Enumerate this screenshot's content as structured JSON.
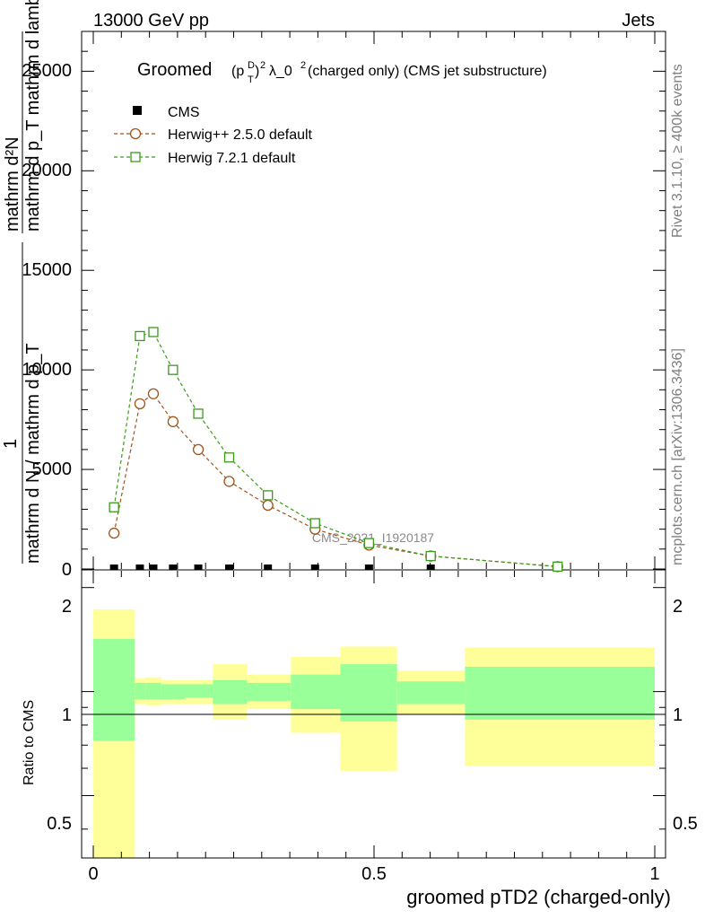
{
  "header": {
    "left": "13000 GeV pp",
    "right": "Jets"
  },
  "side_labels": {
    "rivet": "Rivet 3.1.10, ≥ 400k events",
    "mcplots": "mcplots.cern.ch [arXiv:1306.3436]"
  },
  "chart_data": {
    "type": "scatter",
    "title": "Groomed (p_T^D)^2 λ_0^2 (charged only) (CMS jet substructure)",
    "title_parts": {
      "main": "Groomed",
      "sup": "D",
      "sub": "T",
      "sup2": "2",
      "lambda": "λ_0",
      "rest": " (charged only) (CMS jet substructure)"
    },
    "analysis_label": "CMS_2021_I1920187",
    "xlabel": "groomed pTD2 (charged-only)",
    "ylabel": {
      "line1": "mathrm d²N",
      "line2": "mathrm d p_T mathrm d lambda",
      "line3": "1",
      "line4": "mathrm d N / mathrm d p_T"
    },
    "ratio_ylabel": "Ratio to CMS",
    "xlim": [
      0,
      1
    ],
    "ylim": [
      0,
      27000
    ],
    "ratio_ylim": [
      0.33,
      2.25
    ],
    "x_ticks": [
      "0",
      "0.5",
      "1"
    ],
    "y_ticks": [
      "0",
      "5000",
      "10000",
      "15000",
      "20000",
      "25000"
    ],
    "ratio_ticks": [
      "0.5",
      "1",
      "2"
    ],
    "legend": [
      {
        "name": "CMS",
        "marker": "square-filled",
        "color": "#000000"
      },
      {
        "name": "Herwig++ 2.5.0 default",
        "marker": "circle-open",
        "color": "#a0521d"
      },
      {
        "name": "Herwig 7.2.1 default",
        "marker": "square-open",
        "color": "#3a9a1a"
      }
    ],
    "series": [
      {
        "name": "CMS",
        "x": [
          0.037,
          0.083,
          0.107,
          0.142,
          0.187,
          0.242,
          0.311,
          0.395,
          0.491,
          0.601,
          0.827
        ],
        "y": [
          40,
          40,
          40,
          40,
          40,
          40,
          40,
          40,
          40,
          40,
          40
        ]
      },
      {
        "name": "Herwig++ 2.5.0 default",
        "x": [
          0.037,
          0.083,
          0.107,
          0.142,
          0.187,
          0.242,
          0.311,
          0.395,
          0.491,
          0.601,
          0.827
        ],
        "y": [
          1800,
          8300,
          8800,
          7400,
          6000,
          4400,
          3200,
          2000,
          1200,
          650,
          120
        ]
      },
      {
        "name": "Herwig 7.2.1 default",
        "x": [
          0.037,
          0.083,
          0.107,
          0.142,
          0.187,
          0.242,
          0.311,
          0.395,
          0.491,
          0.601,
          0.827
        ],
        "y": [
          3100,
          11700,
          11900,
          10000,
          7800,
          5600,
          3700,
          2300,
          1300,
          650,
          120
        ]
      }
    ],
    "ratio_bands": [
      {
        "x0": 0.0,
        "x1": 0.074,
        "yellow": [
          0.33,
          1.73
        ],
        "green": [
          0.72,
          1.42
        ]
      },
      {
        "x0": 0.074,
        "x1": 0.094,
        "yellow": [
          0.92,
          1.09
        ],
        "green": [
          0.95,
          1.06
        ]
      },
      {
        "x0": 0.094,
        "x1": 0.121,
        "yellow": [
          0.91,
          1.1
        ],
        "green": [
          0.95,
          1.06
        ]
      },
      {
        "x0": 0.121,
        "x1": 0.163,
        "yellow": [
          0.92,
          1.08
        ],
        "green": [
          0.95,
          1.05
        ]
      },
      {
        "x0": 0.163,
        "x1": 0.213,
        "yellow": [
          0.92,
          1.08
        ],
        "green": [
          0.96,
          1.05
        ]
      },
      {
        "x0": 0.213,
        "x1": 0.274,
        "yellow": [
          0.83,
          1.2
        ],
        "green": [
          0.92,
          1.08
        ]
      },
      {
        "x0": 0.274,
        "x1": 0.352,
        "yellow": [
          0.89,
          1.12
        ],
        "green": [
          0.94,
          1.06
        ]
      },
      {
        "x0": 0.352,
        "x1": 0.44,
        "yellow": [
          0.76,
          1.26
        ],
        "green": [
          0.89,
          1.12
        ]
      },
      {
        "x0": 0.44,
        "x1": 0.541,
        "yellow": [
          0.59,
          1.35
        ],
        "green": [
          0.82,
          1.2
        ]
      },
      {
        "x0": 0.541,
        "x1": 0.662,
        "yellow": [
          0.86,
          1.15
        ],
        "green": [
          0.92,
          1.07
        ]
      },
      {
        "x0": 0.662,
        "x1": 1.0,
        "yellow": [
          0.61,
          1.34
        ],
        "green": [
          0.83,
          1.18
        ]
      }
    ]
  }
}
